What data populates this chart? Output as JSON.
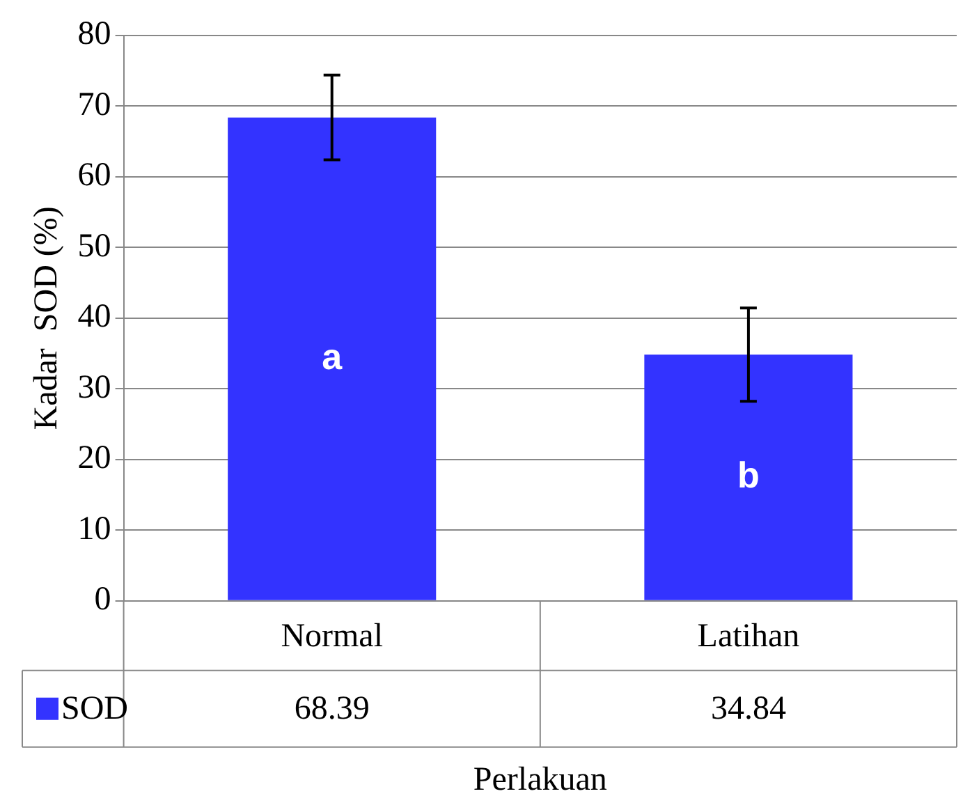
{
  "chart_data": {
    "type": "bar",
    "ylabel": "Kadar  SOD (%)",
    "xlabel": "Perlakuan",
    "categories": [
      "Normal",
      "Latihan"
    ],
    "series": [
      {
        "name": "SOD",
        "color": "#3333ff",
        "values": [
          68.39,
          34.84
        ],
        "errors": [
          6,
          6.6
        ]
      }
    ],
    "ylim": [
      0,
      80
    ],
    "yticks": [
      0,
      10,
      20,
      30,
      40,
      50,
      60,
      70,
      80
    ],
    "grid": "y",
    "legend": "bottom",
    "data_labels": true,
    "annotations": [
      "a",
      "b"
    ]
  }
}
